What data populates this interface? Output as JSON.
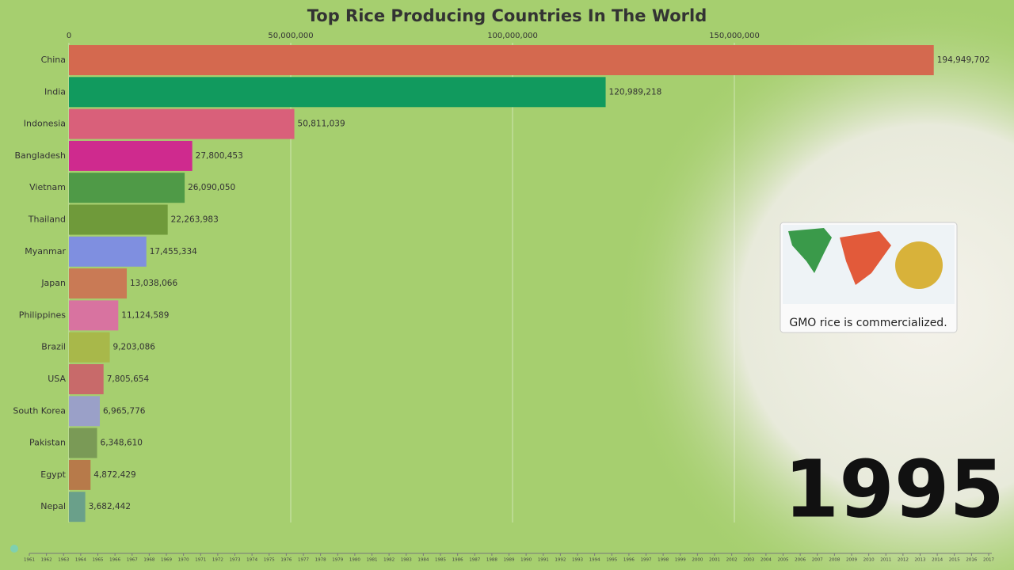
{
  "chart_data": {
    "type": "bar",
    "orientation": "horizontal",
    "title": "Top Rice Producing Countries In The World",
    "categories": [
      "China",
      "India",
      "Indonesia",
      "Bangladesh",
      "Vietnam",
      "Thailand",
      "Myanmar",
      "Japan",
      "Philippines",
      "Brazil",
      "USA",
      "South Korea",
      "Pakistan",
      "Egypt",
      "Nepal"
    ],
    "values": [
      194949702,
      120989218,
      50811039,
      27800453,
      26090050,
      22263983,
      17455334,
      13038066,
      11124589,
      9203086,
      7805654,
      6965776,
      6348610,
      4872429,
      3682442
    ],
    "value_labels": [
      "194,949,702",
      "120,989,218",
      "50,811,039",
      "27,800,453",
      "26,090,050",
      "22,263,983",
      "17,455,334",
      "13,038,066",
      "11,124,589",
      "9,203,086",
      "7,805,654",
      "6,965,776",
      "6,348,610",
      "4,872,429",
      "3,682,442"
    ],
    "colors": [
      "#d4694f",
      "#119a5e",
      "#d9607a",
      "#cf2a8e",
      "#4f9a47",
      "#6f9a3a",
      "#7f8fe0",
      "#c97a55",
      "#d873a0",
      "#a8b84a",
      "#c86a6a",
      "#9aa0c8",
      "#7a9a56",
      "#b77a4a",
      "#6aa08a"
    ],
    "xlim": [
      0,
      200000000
    ],
    "xticks": [
      0,
      {
        "value": 50000000,
        "label": "50,000,000"
      },
      {
        "value": 100000000,
        "label": "100,000,000"
      },
      {
        "value": 150000000,
        "label": "150,000,000"
      }
    ],
    "grid": true,
    "year": "1995",
    "annotation": "GMO rice is commercialized.",
    "timeline": [
      "1961",
      "1962",
      "1963",
      "1964",
      "1965",
      "1966",
      "1967",
      "1968",
      "1969",
      "1970",
      "1971",
      "1972",
      "1973",
      "1974",
      "1975",
      "1976",
      "1977",
      "1978",
      "1979",
      "1980",
      "1981",
      "1982",
      "1983",
      "1984",
      "1985",
      "1986",
      "1987",
      "1988",
      "1989",
      "1990",
      "1991",
      "1992",
      "1993",
      "1994",
      "1995",
      "1996",
      "1997",
      "1998",
      "1999",
      "2000",
      "2001",
      "2002",
      "2003",
      "2004",
      "2005",
      "2006",
      "2007",
      "2008",
      "2009",
      "2010",
      "2011",
      "2012",
      "2013",
      "2014",
      "2015",
      "2016",
      "2017"
    ]
  }
}
